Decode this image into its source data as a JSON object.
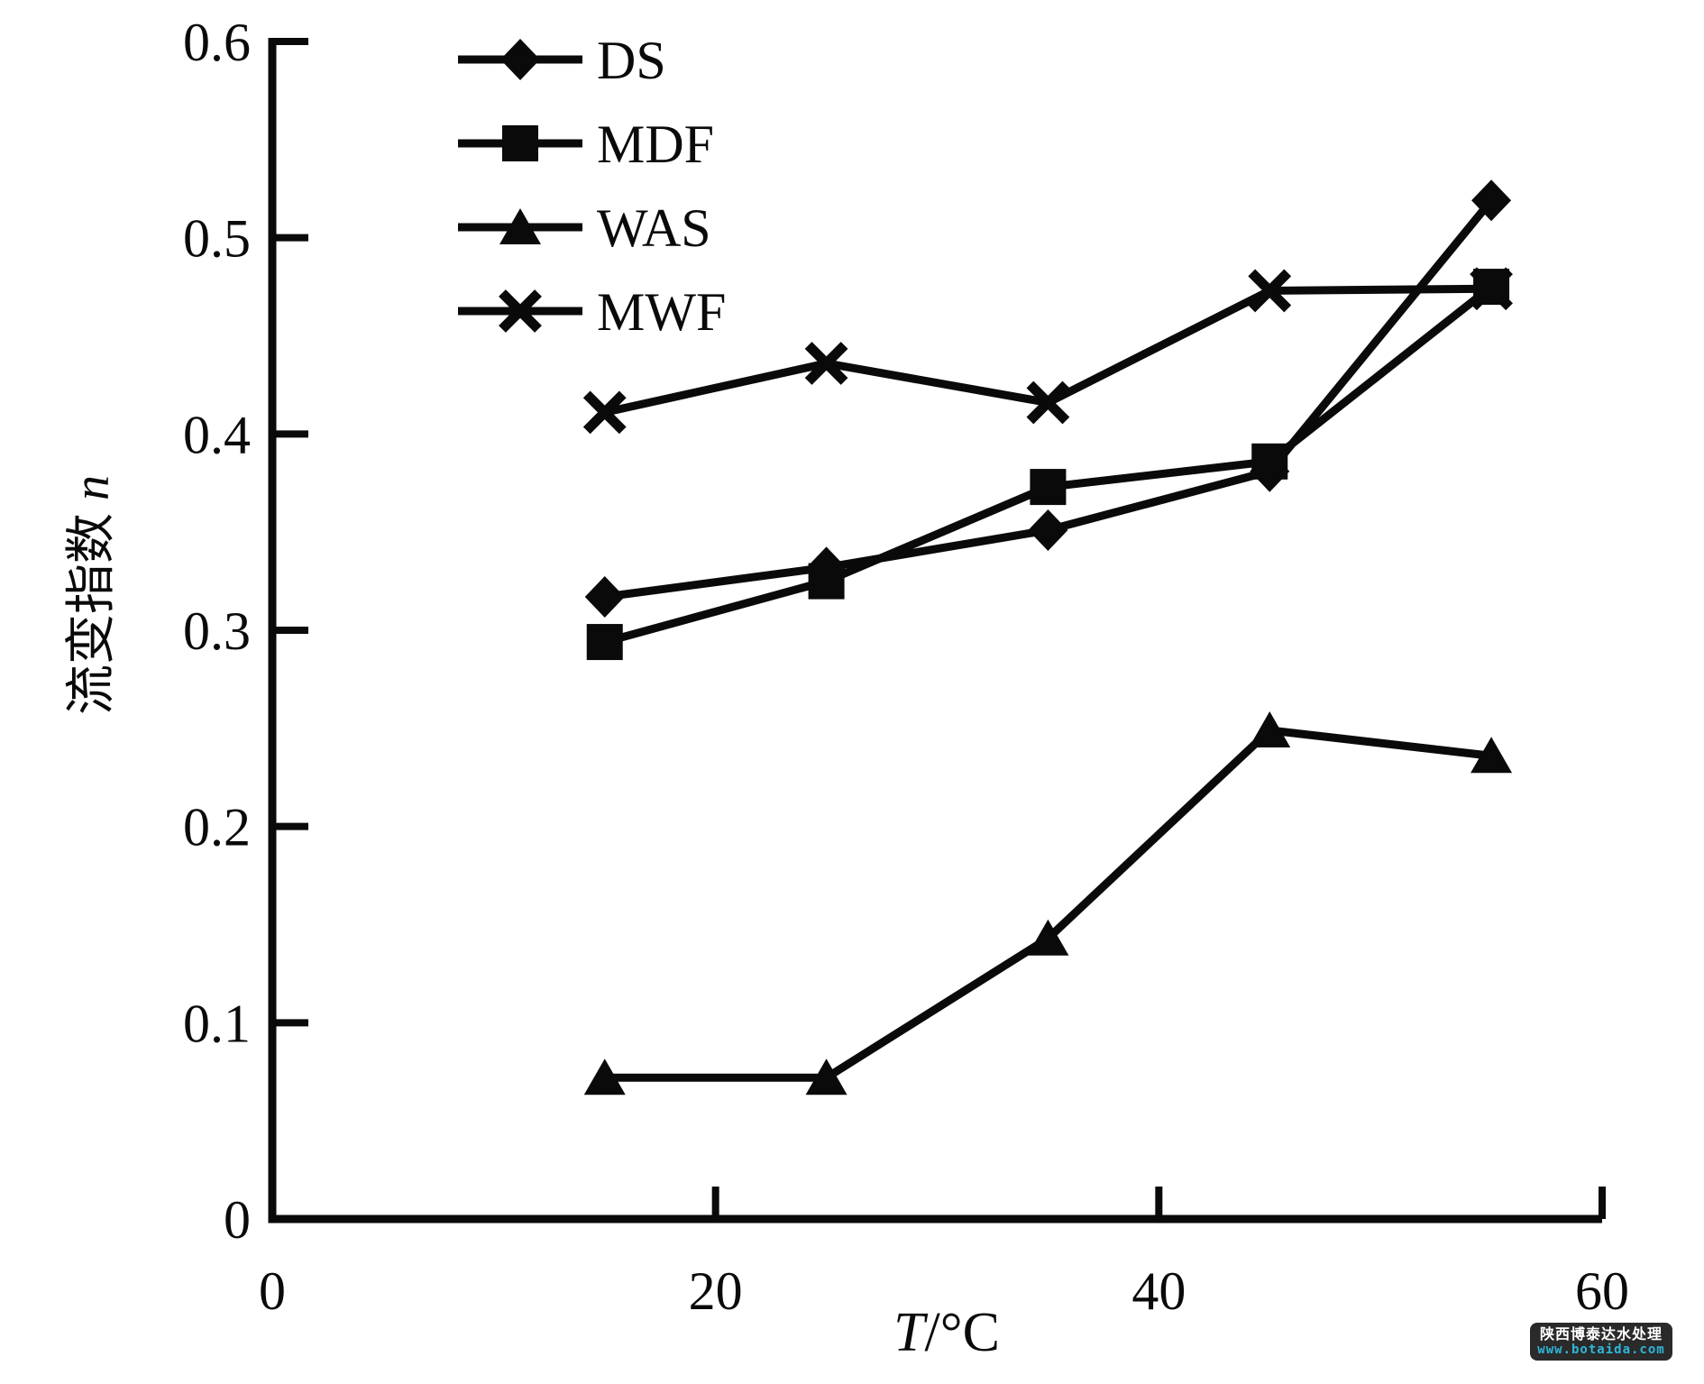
{
  "chart_data": {
    "type": "line",
    "title": "",
    "x": [
      15,
      25,
      35,
      45,
      55
    ],
    "series": [
      {
        "name": "DS",
        "marker": "diamond",
        "values": [
          0.317,
          0.332,
          0.351,
          0.381,
          0.519
        ]
      },
      {
        "name": "MDF",
        "marker": "square",
        "values": [
          0.294,
          0.325,
          0.373,
          0.386,
          0.475
        ]
      },
      {
        "name": "WAS",
        "marker": "triangle",
        "values": [
          0.072,
          0.072,
          0.143,
          0.249,
          0.236
        ]
      },
      {
        "name": "MWF",
        "marker": "x",
        "values": [
          0.411,
          0.436,
          0.416,
          0.473,
          0.474
        ]
      }
    ],
    "xlabel": "T/°C",
    "ylabel": "流变指数 n",
    "xlabel_parts": [
      "T",
      "/°C"
    ],
    "ylabel_parts": [
      "流变指数 ",
      "n"
    ],
    "xlim": [
      0,
      60
    ],
    "ylim": [
      0,
      0.6
    ],
    "x_ticks": [
      0,
      20,
      40,
      60
    ],
    "y_ticks": [
      0,
      0.1,
      0.2,
      0.3,
      0.4,
      0.5,
      0.6
    ],
    "grid": false,
    "legend_position": "top-left",
    "draw_order": [
      3,
      0,
      1,
      2
    ],
    "color": "#0a0a0a"
  },
  "watermark": {
    "line1": "陕西博泰达水处理",
    "line2": "www.botaida.com",
    "bg_color": "#2a2a2a",
    "line1_color": "#ffffff",
    "line2_color": "#2fb6d8"
  }
}
